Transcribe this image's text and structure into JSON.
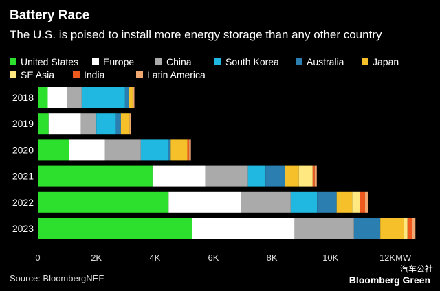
{
  "title": "Battery Race",
  "subtitle": "The U.S. is poised to install more energy storage than any other country",
  "source": "Source: BloombergNEF",
  "brand": "Bloomberg Green",
  "watermark": "汽车公社",
  "chart_data": {
    "type": "bar",
    "orientation": "horizontal",
    "stacked": true,
    "title": "Battery Race",
    "subtitle": "The U.S. is poised to install more energy storage than any other country",
    "categories": [
      "2018",
      "2019",
      "2020",
      "2021",
      "2022",
      "2023"
    ],
    "xlim": [
      0,
      12800
    ],
    "x_ticks": [
      0,
      2000,
      4000,
      6000,
      8000,
      10000,
      12000
    ],
    "x_tick_labels": [
      "0",
      "2K",
      "4K",
      "6K",
      "8K",
      "10K",
      "12KMW"
    ],
    "legend_position": "top",
    "series": [
      {
        "name": "United States",
        "color": "#2ee02e",
        "values": [
          340,
          370,
          1070,
          3920,
          4470,
          5270
        ]
      },
      {
        "name": "Europe",
        "color": "#ffffff",
        "values": [
          660,
          1100,
          1220,
          1800,
          2470,
          3500
        ]
      },
      {
        "name": "China",
        "color": "#aaaaaa",
        "values": [
          500,
          530,
          1230,
          1460,
          1700,
          2030
        ]
      },
      {
        "name": "South Korea",
        "color": "#20b8e0",
        "values": [
          1480,
          670,
          920,
          600,
          900,
          0
        ]
      },
      {
        "name": "Australia",
        "color": "#2a7fb0",
        "values": [
          130,
          170,
          100,
          670,
          670,
          900
        ]
      },
      {
        "name": "Japan",
        "color": "#f5c02a",
        "values": [
          130,
          300,
          570,
          470,
          530,
          800
        ]
      },
      {
        "name": "SE Asia",
        "color": "#ffe880",
        "values": [
          0,
          0,
          0,
          470,
          270,
          130
        ]
      },
      {
        "name": "India",
        "color": "#ee5a1e",
        "values": [
          0,
          0,
          60,
          70,
          170,
          170
        ]
      },
      {
        "name": "Latin America",
        "color": "#f0a870",
        "values": [
          60,
          40,
          60,
          70,
          100,
          100
        ]
      }
    ]
  }
}
